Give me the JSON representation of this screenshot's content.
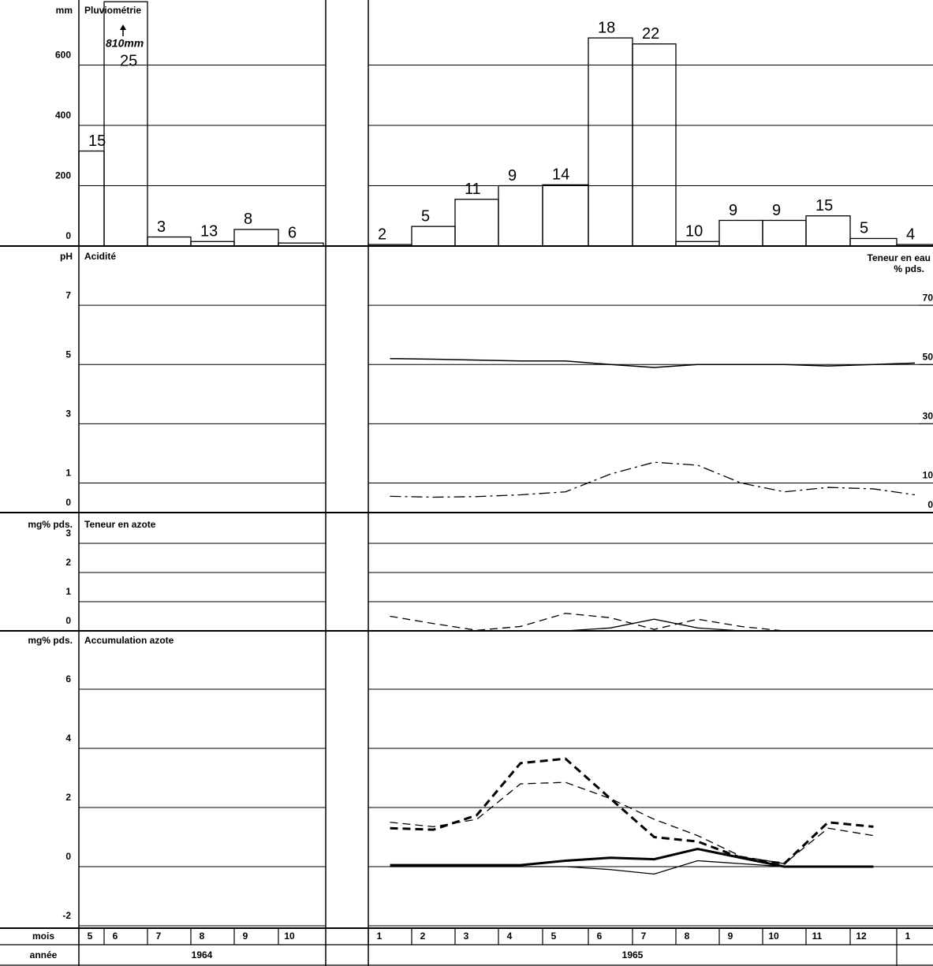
{
  "x_axis": {
    "month_label": "mois",
    "year_label": "année",
    "groups": [
      {
        "year": "1964",
        "months": [
          "5",
          "6",
          "7",
          "8",
          "9",
          "10"
        ]
      },
      {
        "year": "1965",
        "months": [
          "1",
          "2",
          "3",
          "4",
          "5",
          "6",
          "7",
          "8",
          "9",
          "10",
          "11",
          "12",
          "1"
        ]
      }
    ]
  },
  "chart_data": [
    {
      "type": "bar",
      "title": "Pluviométrie",
      "y_label": "mm",
      "ylim": [
        0,
        800
      ],
      "yticks": [
        0,
        200,
        400,
        600
      ],
      "series": [
        {
          "values": [
            315,
            810,
            30,
            15,
            55,
            10
          ],
          "days": [
            15,
            25,
            3,
            13,
            8,
            6
          ],
          "annotation": "810mm",
          "color": "#000000"
        },
        {
          "values": [
            5,
            65,
            155,
            200,
            203,
            690,
            670,
            15,
            85,
            85,
            100,
            25,
            5
          ],
          "days": [
            2,
            5,
            11,
            9,
            14,
            18,
            22,
            10,
            9,
            9,
            15,
            5,
            4
          ],
          "color": "#000000"
        }
      ]
    },
    {
      "type": "line",
      "title": "Acidité",
      "y_label": "pH",
      "ylim": [
        0,
        9
      ],
      "yticks": [
        0,
        1,
        3,
        5,
        7
      ],
      "y2_label": "Teneur en eau",
      "y2_unit": "% pds.",
      "y2lim": [
        0,
        90
      ],
      "y2ticks": [
        0,
        10,
        30,
        50,
        70
      ],
      "series": [
        {
          "values": [
            5.2,
            5.18,
            5.15,
            5.12,
            5.12,
            5.0,
            4.9,
            5.0,
            5.0,
            5.0,
            4.95,
            5.0,
            5.05
          ],
          "dash": "solid",
          "width": 1.5,
          "color": "#000000"
        },
        {
          "axis": "y2",
          "values": [
            5.5,
            5.2,
            5.4,
            6,
            7,
            13,
            17,
            16,
            10,
            7,
            8.5,
            8,
            6
          ],
          "dash": "dashdot",
          "width": 1.3,
          "color": "#000000"
        }
      ]
    },
    {
      "type": "line",
      "title": "Teneur en azote",
      "y_label": "mg% pds.",
      "ylim": [
        0,
        4
      ],
      "yticks": [
        0,
        1,
        2,
        3
      ],
      "series": [
        {
          "values": [
            0.5,
            0.25,
            0.02,
            0.15,
            0.6,
            0.45,
            0.05,
            0.4,
            0.15,
            0,
            null,
            null,
            null
          ],
          "dash": "dashed",
          "width": 1.3,
          "color": "#000000"
        },
        {
          "values": [
            0,
            0,
            0,
            0,
            0,
            0.1,
            0.4,
            0.1,
            0,
            0,
            null,
            null,
            null
          ],
          "dash": "solid",
          "width": 1.3,
          "color": "#000000"
        }
      ]
    },
    {
      "type": "line",
      "title": "Accumulation azote",
      "y_label": "mg% pds.",
      "ylim": [
        -2,
        8
      ],
      "yticks": [
        -2,
        0,
        2,
        4,
        6
      ],
      "series": [
        {
          "values": [
            1.3,
            1.25,
            1.74,
            3.5,
            3.65,
            2.3,
            1.0,
            0.85,
            0.3,
            0.1,
            1.5,
            1.35,
            null
          ],
          "dash": "dashed",
          "width": 3,
          "color": "#000000"
        },
        {
          "values": [
            1.5,
            1.35,
            1.6,
            2.8,
            2.85,
            2.3,
            1.6,
            1.05,
            0.35,
            0.1,
            1.3,
            1.05,
            null
          ],
          "dash": "dashed",
          "width": 1.3,
          "color": "#000000"
        },
        {
          "values": [
            0.05,
            0.05,
            0.05,
            0.05,
            0.2,
            0.3,
            0.25,
            0.6,
            0.3,
            0,
            0,
            0,
            null
          ],
          "dash": "solid",
          "width": 3,
          "color": "#000000"
        },
        {
          "values": [
            0,
            0,
            0,
            0,
            0,
            -0.1,
            -0.25,
            0.2,
            0.1,
            0,
            null,
            null,
            null
          ],
          "dash": "solid",
          "width": 1.3,
          "color": "#000000"
        }
      ]
    }
  ]
}
